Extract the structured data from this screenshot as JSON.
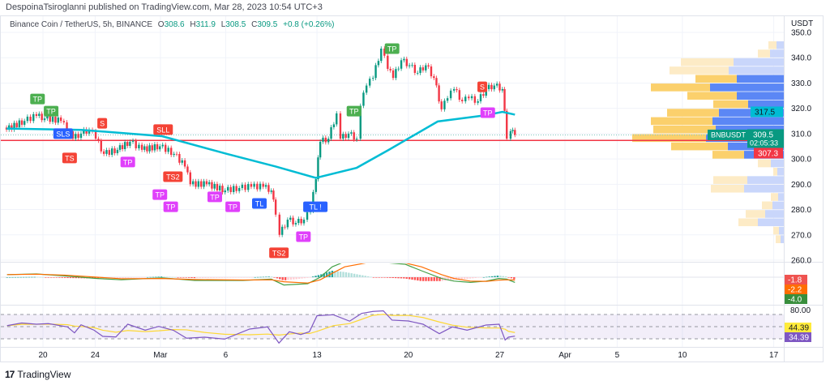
{
  "header": {
    "publisher_line": "DespoinaTsiroglanni published on TradingView.com, Mar 28, 2023 10:54 UTC+3"
  },
  "legend": {
    "symbol": "Binance Coin / TetherUS, 5h, BINANCE",
    "open_label": "O",
    "open": "308.6",
    "high_label": "H",
    "high": "311.9",
    "low_label": "L",
    "low": "308.5",
    "close_label": "C",
    "close": "309.5",
    "change": "+0.8 (+0.26%)"
  },
  "footer": {
    "brand": "TradingView"
  },
  "colors": {
    "up": "#089981",
    "down": "#f23645",
    "ma": "#00bcd4",
    "level_line": "#f23645",
    "rsi": "#7e57c2",
    "rsi_ma": "#fdd835",
    "macd": "#43a047",
    "signal": "#ff6d00",
    "vp_up_va": "#5b87f5",
    "vp_down_va": "#fbd06c",
    "vp_up": "#c9d6fb",
    "vp_down": "#fdebc6",
    "marker_green": "#4caf50",
    "marker_blue": "#2962ff",
    "marker_red": "#f44336",
    "marker_magenta": "#e040fb"
  },
  "chart_data": {
    "type": "candlestick",
    "title": "",
    "price_axis": {
      "currency": "USDT",
      "ticks": [
        "350.0",
        "340.0",
        "330.0",
        "320.0",
        "310.0",
        "300.0",
        "290.0",
        "280.0",
        "270.0",
        "260.0"
      ],
      "tick_values": [
        350,
        340,
        330,
        320,
        310,
        300,
        290,
        280,
        270,
        260
      ],
      "range": [
        258,
        356
      ],
      "grid": true
    },
    "time_axis": {
      "ticks": [
        {
          "label": "20",
          "date": "02-20 0"
        },
        {
          "label": "24",
          "date": "02-24 0"
        },
        {
          "label": "Mar",
          "date": "03-01 0"
        },
        {
          "label": "6",
          "date": "03-06 0"
        },
        {
          "label": "13",
          "date": "03-13 0"
        },
        {
          "label": "20",
          "date": "03-20 0"
        },
        {
          "label": "27",
          "date": "03-27 0"
        },
        {
          "label": "Apr",
          "date": "04-01 0"
        },
        {
          "label": "5",
          "date": "04-05 0"
        },
        {
          "label": "10",
          "date": "04-10 0"
        },
        {
          "label": "17",
          "date": "04-17 0"
        }
      ]
    },
    "price_closes": [
      [
        "02-17 05",
        311.6
      ],
      [
        "02-18 14",
        315
      ],
      [
        "02-19 12",
        317
      ],
      [
        "02-20 03",
        316
      ],
      [
        "02-21 09",
        315
      ],
      [
        "02-22 07",
        308
      ],
      [
        "02-22 22",
        310
      ],
      [
        "02-23 13",
        311.5
      ],
      [
        "02-24 01",
        308
      ],
      [
        "02-24 16",
        302
      ],
      [
        "02-25 17",
        303.6
      ],
      [
        "02-26 16",
        306.8
      ],
      [
        "02-27 14",
        303.6
      ],
      [
        "02-28 23",
        305
      ],
      [
        "03-02 01",
        302
      ],
      [
        "03-02 21",
        297
      ],
      [
        "03-03 07",
        290
      ],
      [
        "03-04 13",
        290
      ],
      [
        "03-05 23",
        287.5
      ],
      [
        "03-07 01",
        288.5
      ],
      [
        "03-07 23",
        289
      ],
      [
        "03-08 21",
        289
      ],
      [
        "03-09 12",
        287.5
      ],
      [
        "03-09 20",
        278
      ],
      [
        "03-10 03",
        270
      ],
      [
        "03-10 18",
        276
      ],
      [
        "03-11 09",
        274.7
      ],
      [
        "03-12 00",
        276
      ],
      [
        "03-12 12",
        279.5
      ],
      [
        "03-12 22",
        292
      ],
      [
        "03-13 06",
        306.8
      ],
      [
        "03-13 21",
        308
      ],
      [
        "03-14 12",
        318
      ],
      [
        "03-14 19",
        308
      ],
      [
        "03-15 10",
        310
      ],
      [
        "03-16 01",
        308
      ],
      [
        "03-16 08",
        321
      ],
      [
        "03-16 19",
        329
      ],
      [
        "03-17 07",
        332
      ],
      [
        "03-17 22",
        343.6
      ],
      [
        "03-18 10",
        335.6
      ],
      [
        "03-18 20",
        332
      ],
      [
        "03-19 11",
        339
      ],
      [
        "03-20 02",
        337
      ],
      [
        "03-20 17",
        334
      ],
      [
        "03-21 08",
        337
      ],
      [
        "03-21 23",
        332
      ],
      [
        "03-22 13",
        319.6
      ],
      [
        "03-23 00",
        324
      ],
      [
        "03-23 12",
        327.6
      ],
      [
        "03-24 03",
        322.8
      ],
      [
        "03-24 15",
        324
      ],
      [
        "03-25 08",
        322.8
      ],
      [
        "03-25 23",
        327.6
      ],
      [
        "03-26 14",
        329
      ],
      [
        "03-27 05",
        327.6
      ],
      [
        "03-27 13",
        308
      ],
      [
        "03-27 20",
        311
      ],
      [
        "03-28 04",
        309.5
      ]
    ],
    "moving_average": [
      [
        "02-17 05",
        312
      ],
      [
        "02-22 22",
        311.5
      ],
      [
        "03-01 03",
        309
      ],
      [
        "03-06 02",
        302
      ],
      [
        "03-09 20",
        297
      ],
      [
        "03-12 22",
        292.5
      ],
      [
        "03-16 01",
        296.5
      ],
      [
        "03-18 12",
        303.6
      ],
      [
        "03-22 06",
        314.8
      ],
      [
        "03-25 23",
        317.3
      ],
      [
        "03-27 05",
        318.6
      ],
      [
        "03-28 04",
        317.5
      ]
    ],
    "horizontal_level": 307.3,
    "last_price": 309.5,
    "price_labels": {
      "ma_value": "317.5",
      "symbol_tag": "BNBUSDT",
      "last_price": "309.5",
      "countdown": "02:05:33",
      "level_value": "307.3"
    },
    "markers": [
      {
        "date": "02-19 14",
        "price": 323.7,
        "text": "TP",
        "color": "green"
      },
      {
        "date": "02-20 15",
        "price": 323.7,
        "text": "TP",
        "color": "green"
      },
      {
        "date": "02-21 13",
        "price": 319.6,
        "text": "SLS",
        "color": "blue"
      },
      {
        "date": "02-24 13",
        "price": 314.1,
        "text": "S",
        "color": "red"
      },
      {
        "date": "02-22 01",
        "price": 300.4,
        "text": "TS",
        "color": "red"
      },
      {
        "date": "02-26 12",
        "price": 298.8,
        "text": "TP",
        "color": "magenta"
      },
      {
        "date": "03-01 05",
        "price": 311.6,
        "text": "SLL",
        "color": "red"
      },
      {
        "date": "03-01 23",
        "price": 293,
        "text": "TS2",
        "color": "red"
      },
      {
        "date": "02-28 23",
        "price": 295.5,
        "text": "TP",
        "color": "magenta"
      },
      {
        "date": "03-01 19",
        "price": 295.5,
        "text": "TP",
        "color": "magenta"
      },
      {
        "date": "03-05 04",
        "price": 285,
        "text": "TP",
        "color": "magenta"
      },
      {
        "date": "03-06 13",
        "price": 281.1,
        "text": "TP",
        "color": "magenta"
      },
      {
        "date": "03-08 14",
        "price": 282.4,
        "text": "TL",
        "color": "blue"
      },
      {
        "date": "03-10 02",
        "price": 262.9,
        "text": "TS2",
        "color": "red"
      },
      {
        "date": "03-11 23",
        "price": 269.3,
        "text": "TP",
        "color": "magenta"
      },
      {
        "date": "03-12 21",
        "price": 281.1,
        "text": "TL !",
        "color": "blue"
      },
      {
        "date": "03-15 20",
        "price": 318.9,
        "text": "TP",
        "color": "green"
      },
      {
        "date": "03-18 18",
        "price": 343.6,
        "text": "TP",
        "color": "green"
      },
      {
        "date": "03-25 16",
        "price": 328.5,
        "text": "S",
        "color": "red"
      },
      {
        "date": "03-26 02",
        "price": 318.3,
        "text": "TP",
        "color": "magenta"
      }
    ],
    "volume_profile": {
      "columns": [
        "price",
        "up_volume",
        "down_volume",
        "in_value_area"
      ],
      "rows": [
        [
          344.9,
          9,
          10,
          false
        ],
        [
          341.6,
          17,
          15,
          false
        ],
        [
          338.2,
          62,
          65,
          false
        ],
        [
          334.9,
          68,
          73,
          false
        ],
        [
          331.6,
          58,
          51,
          true
        ],
        [
          328.2,
          91,
          73,
          true
        ],
        [
          324.9,
          58,
          61,
          true
        ],
        [
          321.6,
          44,
          43,
          true
        ],
        [
          318.2,
          80,
          64,
          true
        ],
        [
          314.9,
          88,
          76,
          true
        ],
        [
          311.6,
          84,
          77,
          true
        ],
        [
          308.2,
          96,
          91,
          true
        ],
        [
          304.9,
          69,
          70,
          true
        ],
        [
          301.6,
          49,
          39,
          true
        ],
        [
          298.2,
          16,
          16,
          false
        ],
        [
          294.9,
          8,
          5,
          false
        ],
        [
          291.6,
          45,
          42,
          false
        ],
        [
          288.2,
          49,
          41,
          false
        ],
        [
          284.9,
          7,
          9,
          false
        ],
        [
          281.6,
          14,
          13,
          false
        ],
        [
          278.2,
          23,
          24,
          false
        ],
        [
          274.9,
          32,
          24,
          false
        ],
        [
          271.6,
          6,
          7,
          false
        ],
        [
          268.2,
          4,
          6,
          false
        ]
      ]
    },
    "macd": {
      "dates": [
        "02-17 06",
        "02-19 12",
        "02-21 16",
        "02-24 04",
        "02-26 00",
        "03-01 03",
        "03-03 15",
        "03-07 08",
        "03-09 12",
        "03-10 11",
        "03-12 07",
        "03-13 06",
        "03-14 04",
        "03-15 03",
        "03-17 07",
        "03-19 18",
        "03-21 00",
        "03-22 13",
        "03-23 12",
        "03-24 18",
        "03-25 23",
        "03-26 22",
        "03-27 13",
        "03-28 04"
      ],
      "macd": [
        2,
        2.5,
        1,
        -1,
        -2,
        -0.5,
        -2.5,
        -2.5,
        -1.5,
        -6,
        -5,
        0,
        8,
        12,
        12,
        10,
        5,
        -1,
        -3,
        -4,
        -3,
        -1,
        -1.5,
        -4
      ],
      "signal": [
        2,
        2.3,
        1.6,
        0,
        -1.2,
        -1,
        -1.8,
        -2.2,
        -2,
        -3.5,
        -4.5,
        -2,
        3,
        8,
        12,
        11,
        8,
        2,
        -1,
        -3,
        -3.2,
        -2.3,
        -2,
        -2.2
      ],
      "labels": {
        "histogram": "-1.8",
        "signal": "-2.2",
        "macd": "-4.0"
      }
    },
    "rsi": {
      "bands": [
        70,
        50,
        30
      ],
      "axis_label": "80.00",
      "dates": [
        "02-17 06",
        "02-18 09",
        "02-19 12",
        "02-20 10",
        "02-21 21",
        "02-22 10",
        "02-22 22",
        "02-23 22",
        "02-24 14",
        "02-25 14",
        "02-26 12",
        "02-27 20",
        "02-28 21",
        "03-02 00",
        "03-03 00",
        "03-04 09",
        "03-05 22",
        "03-07 20",
        "03-09 05",
        "03-10 02",
        "03-10 21",
        "03-11 18",
        "03-12 10",
        "03-13 00",
        "03-14 06",
        "03-15 12",
        "03-16 10",
        "03-17 07",
        "03-18 02",
        "03-18 18",
        "03-20 00",
        "03-21 03",
        "03-22 09",
        "03-23 09",
        "03-24 12",
        "03-25 23",
        "03-26 23",
        "03-27 10",
        "03-27 16",
        "03-28 04"
      ],
      "values": [
        51.7,
        56,
        54,
        55,
        49.6,
        39.8,
        53,
        44.2,
        34,
        33,
        54,
        44.2,
        50.4,
        44,
        31,
        32.7,
        29.5,
        46,
        49.6,
        23,
        41.6,
        37,
        41.6,
        68,
        69.6,
        59,
        71.8,
        75,
        76,
        60.7,
        59.3,
        54,
        38.4,
        49.6,
        44.2,
        52.7,
        54,
        28,
        32.7,
        34.4
      ],
      "labels": {
        "rsi_ma": "44.39",
        "rsi": "34.39"
      }
    }
  }
}
